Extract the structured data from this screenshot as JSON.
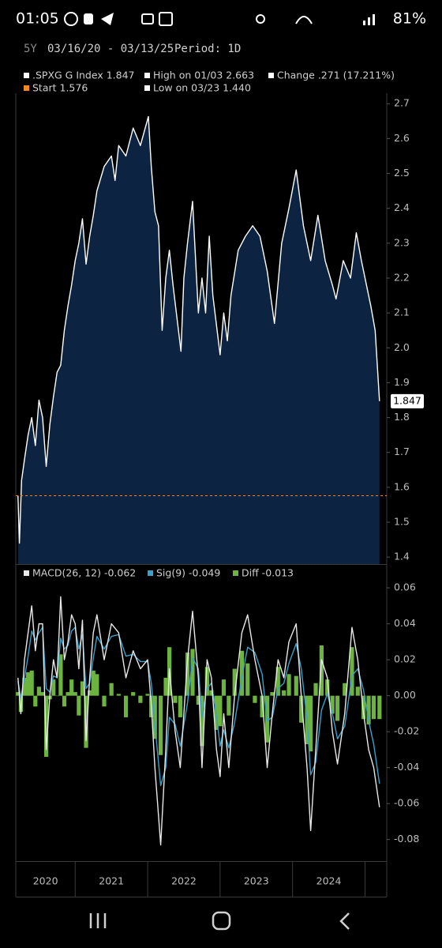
{
  "status_bar": {
    "time": "01:05",
    "battery": "81%"
  },
  "header": {
    "period": "5Y",
    "range": "03/16/20 - 03/13/25",
    "interval": "Period: 1D"
  },
  "chart_data": [
    {
      "type": "area",
      "legend": [
        {
          "label": ".SPXG G Index 1.847",
          "color": "#ffffff"
        },
        {
          "label": "High on 01/03 2.663",
          "color": "#ffffff"
        },
        {
          "label": "Change .271 (17.211%)",
          "color": "#ffffff"
        },
        {
          "label": "Start 1.576",
          "color": "#f08a24"
        },
        {
          "label": "Low on 03/23 1.440",
          "color": "#ffffff"
        }
      ],
      "fill": "#0c2341",
      "x": [
        2020.21,
        2020.23,
        2020.26,
        2020.3,
        2020.35,
        2020.4,
        2020.45,
        2020.5,
        2020.55,
        2020.6,
        2020.65,
        2020.7,
        2020.75,
        2020.8,
        2020.85,
        2020.9,
        2020.95,
        2021.0,
        2021.05,
        2021.1,
        2021.15,
        2021.2,
        2021.25,
        2021.3,
        2021.4,
        2021.5,
        2021.55,
        2021.6,
        2021.7,
        2021.8,
        2021.9,
        2022.01,
        2022.05,
        2022.1,
        2022.15,
        2022.2,
        2022.25,
        2022.3,
        2022.35,
        2022.46,
        2022.5,
        2022.55,
        2022.62,
        2022.65,
        2022.7,
        2022.75,
        2022.8,
        2022.85,
        2022.9,
        2023.0,
        2023.05,
        2023.1,
        2023.15,
        2023.25,
        2023.35,
        2023.45,
        2023.55,
        2023.65,
        2023.75,
        2023.85,
        2023.95,
        2024.05,
        2024.15,
        2024.25,
        2024.35,
        2024.45,
        2024.55,
        2024.6,
        2024.7,
        2024.8,
        2024.88,
        2024.95,
        2025.02,
        2025.08,
        2025.14,
        2025.2
      ],
      "series": [
        {
          "name": ".SPXG G Index",
          "color": "#ffffff",
          "values": [
            1.576,
            1.44,
            1.62,
            1.68,
            1.75,
            1.8,
            1.72,
            1.85,
            1.8,
            1.66,
            1.78,
            1.86,
            1.93,
            1.95,
            2.05,
            2.12,
            2.18,
            2.25,
            2.3,
            2.37,
            2.24,
            2.32,
            2.38,
            2.45,
            2.52,
            2.55,
            2.48,
            2.58,
            2.55,
            2.63,
            2.58,
            2.663,
            2.52,
            2.39,
            2.35,
            2.05,
            2.2,
            2.28,
            2.18,
            1.99,
            2.2,
            2.3,
            2.42,
            2.3,
            2.1,
            2.2,
            2.1,
            2.32,
            2.15,
            1.98,
            2.1,
            2.02,
            2.15,
            2.28,
            2.32,
            2.35,
            2.32,
            2.22,
            2.07,
            2.3,
            2.4,
            2.51,
            2.35,
            2.25,
            2.38,
            2.25,
            2.18,
            2.14,
            2.25,
            2.2,
            2.33,
            2.25,
            2.18,
            2.12,
            2.05,
            1.847
          ]
        }
      ],
      "reference_line": {
        "value": 1.576,
        "color": "#f08a24"
      },
      "xlim": [
        2020.18,
        2025.3
      ],
      "ylim": [
        1.38,
        2.73
      ],
      "yticks": [
        2.7,
        2.6,
        2.5,
        2.4,
        2.3,
        2.2,
        2.1,
        {
          "value": 2,
          "label": "2.0"
        },
        1.9,
        1.8,
        1.7,
        1.6,
        1.5,
        1.4
      ]
    },
    {
      "type": "line",
      "legend": [
        {
          "label": "MACD(26, 12) -0.062",
          "color": "#e8e8e8"
        },
        {
          "label": "Sig(9) -0.049",
          "color": "#3aa0c8"
        },
        {
          "label": "Diff -0.013",
          "color": "#6db33f"
        }
      ],
      "x": [
        2020.21,
        2020.25,
        2020.3,
        2020.35,
        2020.4,
        2020.45,
        2020.5,
        2020.55,
        2020.6,
        2020.65,
        2020.7,
        2020.75,
        2020.8,
        2020.85,
        2020.9,
        2020.95,
        2021.0,
        2021.05,
        2021.1,
        2021.15,
        2021.2,
        2021.25,
        2021.3,
        2021.4,
        2021.5,
        2021.6,
        2021.7,
        2021.8,
        2021.9,
        2022.0,
        2022.05,
        2022.1,
        2022.18,
        2022.25,
        2022.3,
        2022.38,
        2022.45,
        2022.55,
        2022.62,
        2022.7,
        2022.75,
        2022.82,
        2022.88,
        2022.95,
        2023.0,
        2023.05,
        2023.12,
        2023.2,
        2023.3,
        2023.38,
        2023.48,
        2023.58,
        2023.65,
        2023.72,
        2023.8,
        2023.88,
        2023.95,
        2024.05,
        2024.12,
        2024.2,
        2024.25,
        2024.32,
        2024.4,
        2024.48,
        2024.55,
        2024.62,
        2024.72,
        2024.82,
        2024.9,
        2024.98,
        2025.05,
        2025.12,
        2025.2
      ],
      "series": [
        {
          "name": "Diff",
          "color": "#6db33f",
          "style": "bar",
          "values": [
            0.002,
            -0.009,
            0.01,
            0.013,
            0.014,
            -0.006,
            0.005,
            0.002,
            -0.034,
            -0.002,
            0.009,
            0.0,
            0.023,
            -0.006,
            0.002,
            0.009,
            0.002,
            -0.011,
            0.008,
            -0.029,
            0.003,
            0.014,
            0.012,
            -0.006,
            0.007,
            0.001,
            -0.012,
            0.002,
            -0.004,
            0.001,
            -0.012,
            -0.024,
            -0.033,
            0.01,
            0.027,
            -0.004,
            -0.012,
            0.024,
            0.026,
            -0.005,
            -0.028,
            0.016,
            0.003,
            -0.019,
            -0.017,
            0.009,
            -0.011,
            0.015,
            0.025,
            0.018,
            -0.004,
            -0.012,
            -0.026,
            0.002,
            0.016,
            0.003,
            0.012,
            0.011,
            -0.015,
            -0.027,
            -0.031,
            0.007,
            0.028,
            0.009,
            -0.01,
            -0.014,
            0.007,
            0.027,
            0.005,
            -0.013,
            -0.016,
            -0.013,
            -0.013
          ]
        },
        {
          "name": "Sig",
          "color": "#3aa0c8",
          "style": "line",
          "values": [
            0.008,
            -0.001,
            0.01,
            0.022,
            0.036,
            0.031,
            0.035,
            0.038,
            0.004,
            0.002,
            0.011,
            0.01,
            0.032,
            0.026,
            0.028,
            0.036,
            0.038,
            0.026,
            0.034,
            0.004,
            0.007,
            0.021,
            0.033,
            0.026,
            0.033,
            0.034,
            0.022,
            0.023,
            0.019,
            0.019,
            0.007,
            -0.016,
            -0.05,
            -0.04,
            -0.012,
            -0.016,
            -0.028,
            -0.004,
            0.021,
            0.015,
            -0.012,
            0.004,
            0.007,
            -0.011,
            -0.028,
            -0.019,
            -0.029,
            -0.015,
            0.01,
            0.027,
            0.024,
            0.012,
            -0.014,
            -0.012,
            0.004,
            0.007,
            0.018,
            0.029,
            0.015,
            -0.013,
            -0.044,
            -0.037,
            -0.008,
            0.001,
            -0.01,
            -0.024,
            -0.017,
            0.011,
            0.015,
            0.003,
            -0.014,
            -0.027,
            -0.049
          ]
        },
        {
          "name": "MACD",
          "color": "#e8e8e8",
          "style": "line",
          "values": [
            0.01,
            -0.01,
            0.02,
            0.035,
            0.05,
            0.025,
            0.04,
            0.04,
            -0.03,
            0.0,
            0.02,
            0.01,
            0.055,
            0.02,
            0.03,
            0.045,
            0.04,
            0.015,
            0.042,
            -0.025,
            0.01,
            0.035,
            0.045,
            0.02,
            0.04,
            0.035,
            0.01,
            0.025,
            0.015,
            0.02,
            -0.005,
            -0.04,
            -0.083,
            -0.03,
            0.015,
            -0.02,
            -0.04,
            0.02,
            0.047,
            0.01,
            -0.04,
            0.02,
            0.01,
            -0.03,
            -0.045,
            -0.01,
            -0.04,
            0.0,
            0.035,
            0.045,
            0.02,
            0.0,
            -0.04,
            -0.01,
            0.02,
            0.01,
            0.03,
            0.04,
            0.0,
            -0.04,
            -0.075,
            -0.03,
            0.02,
            0.01,
            -0.02,
            -0.038,
            -0.01,
            0.038,
            0.02,
            -0.01,
            -0.03,
            -0.04,
            -0.062
          ]
        }
      ],
      "xlim": [
        2020.18,
        2025.3
      ],
      "ylim": [
        -0.092,
        0.064
      ],
      "yticks": [
        0.06,
        0.04,
        0.02,
        {
          "value": 0,
          "label": "0.00"
        },
        -0.02,
        -0.04,
        -0.06,
        -0.08
      ],
      "xticks": [
        {
          "value": 2020.59,
          "label": "2020"
        },
        {
          "value": 2021.5,
          "label": "2021"
        },
        {
          "value": 2022.5,
          "label": "2022"
        },
        {
          "value": 2023.5,
          "label": "2023"
        },
        {
          "value": 2024.5,
          "label": "2024"
        }
      ],
      "xgridlines": [
        2021,
        2022,
        2023,
        2024,
        2025
      ]
    }
  ]
}
